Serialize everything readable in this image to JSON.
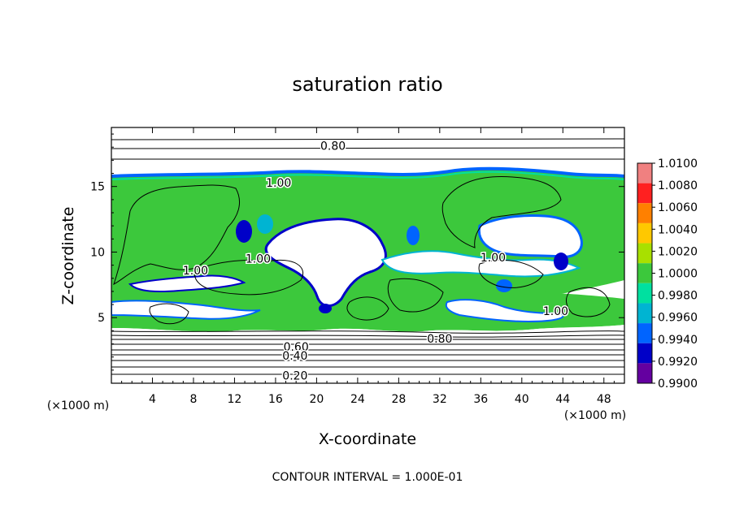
{
  "chart_data": {
    "type": "heatmap",
    "title": "saturation ratio",
    "xlabel": "X-coordinate",
    "ylabel": "Z-coordinate",
    "x_unit": "(×1000 m)",
    "x_unit_right": "(×1000 m)",
    "xlim": [
      0,
      50
    ],
    "ylim": [
      0,
      19.5
    ],
    "x_ticks": [
      "4",
      "8",
      "12",
      "16",
      "20",
      "24",
      "28",
      "32",
      "36",
      "40",
      "44",
      "48"
    ],
    "y_ticks": [
      "5",
      "10",
      "15"
    ],
    "footer": "CONTOUR INTERVAL = 1.000E-01",
    "colorbar": {
      "levels": [
        "1.0100",
        "1.0080",
        "1.0060",
        "1.0040",
        "1.0020",
        "1.0000",
        "0.9980",
        "0.9960",
        "0.9940",
        "0.9920",
        "0.9900"
      ],
      "colors": [
        "#f08080",
        "#ff2020",
        "#ff8000",
        "#ffc800",
        "#a8e000",
        "#3cc83c",
        "#00e0a0",
        "#00b4d2",
        "#0064ff",
        "#0000c8",
        "#6400a0"
      ]
    },
    "contour_labels": [
      {
        "text": "0.80",
        "x": 21.6,
        "y": 18.1
      },
      {
        "text": "1.00",
        "x": 16.3,
        "y": 15.3
      },
      {
        "text": "1.00",
        "x": 8.2,
        "y": 8.6
      },
      {
        "text": "1.00",
        "x": 14.3,
        "y": 9.5
      },
      {
        "text": "1.00",
        "x": 37.2,
        "y": 9.6
      },
      {
        "text": "1.00",
        "x": 43.3,
        "y": 5.5
      },
      {
        "text": "0.80",
        "x": 32.0,
        "y": 3.4
      },
      {
        "text": "0.60",
        "x": 18.0,
        "y": 2.8
      },
      {
        "text": "0.40",
        "x": 17.9,
        "y": 2.1
      },
      {
        "text": "0.20",
        "x": 17.9,
        "y": 0.6
      }
    ]
  }
}
